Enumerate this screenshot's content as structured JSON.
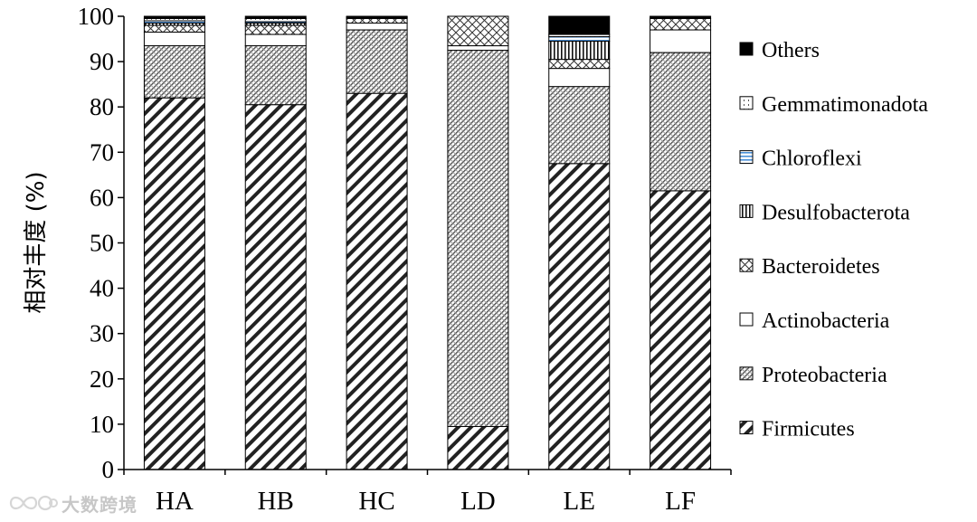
{
  "chart_data": {
    "type": "bar",
    "stacked": true,
    "title": "",
    "xlabel": "",
    "ylabel": "相对丰度 (%)",
    "ylim": [
      0,
      100
    ],
    "yticks": [
      0,
      10,
      20,
      30,
      40,
      50,
      60,
      70,
      80,
      90,
      100
    ],
    "categories": [
      "HA",
      "HB",
      "HC",
      "LD",
      "LE",
      "LF"
    ],
    "legend_position": "right",
    "series": [
      {
        "name": "Firmicutes",
        "pattern": "wide-diagonal",
        "color": "#222222",
        "values": [
          82.0,
          80.5,
          83.0,
          9.5,
          67.5,
          61.5
        ]
      },
      {
        "name": "Proteobacteria",
        "pattern": "fine-diagonal",
        "color": "#333333",
        "values": [
          11.5,
          13.0,
          14.0,
          83.0,
          17.0,
          30.5
        ]
      },
      {
        "name": "Actinobacteria",
        "pattern": "solid-white",
        "color": "#ffffff",
        "values": [
          3.0,
          2.5,
          1.5,
          1.0,
          4.0,
          5.0
        ]
      },
      {
        "name": "Bacteroidetes",
        "pattern": "crosshatch",
        "color": "#333333",
        "values": [
          1.5,
          2.0,
          1.0,
          6.5,
          2.0,
          2.5
        ]
      },
      {
        "name": "Desulfobacterota",
        "pattern": "vertical-stripes",
        "color": "#111111",
        "values": [
          0.5,
          0.5,
          0.2,
          0.0,
          4.0,
          0.0
        ]
      },
      {
        "name": "Chloroflexi",
        "pattern": "horizontal-blue",
        "color": "#4a90d9",
        "values": [
          0.5,
          0.3,
          0.1,
          0.0,
          1.0,
          0.0
        ]
      },
      {
        "name": "Gemmatimonadota",
        "pattern": "dotted-vertical",
        "color": "#555555",
        "values": [
          0.5,
          0.7,
          0.1,
          0.0,
          0.5,
          0.0
        ]
      },
      {
        "name": "Others",
        "pattern": "solid-black",
        "color": "#000000",
        "values": [
          0.5,
          0.5,
          0.1,
          0.0,
          4.0,
          0.5
        ]
      }
    ],
    "legend_order": [
      "Others",
      "Gemmatimonadota",
      "Chloroflexi",
      "Desulfobacterota",
      "Bacteroidetes",
      "Actinobacteria",
      "Proteobacteria",
      "Firmicutes"
    ]
  },
  "watermark": {
    "text": "大数跨境",
    "logo_icon": "infinity-chat-logo-icon"
  }
}
